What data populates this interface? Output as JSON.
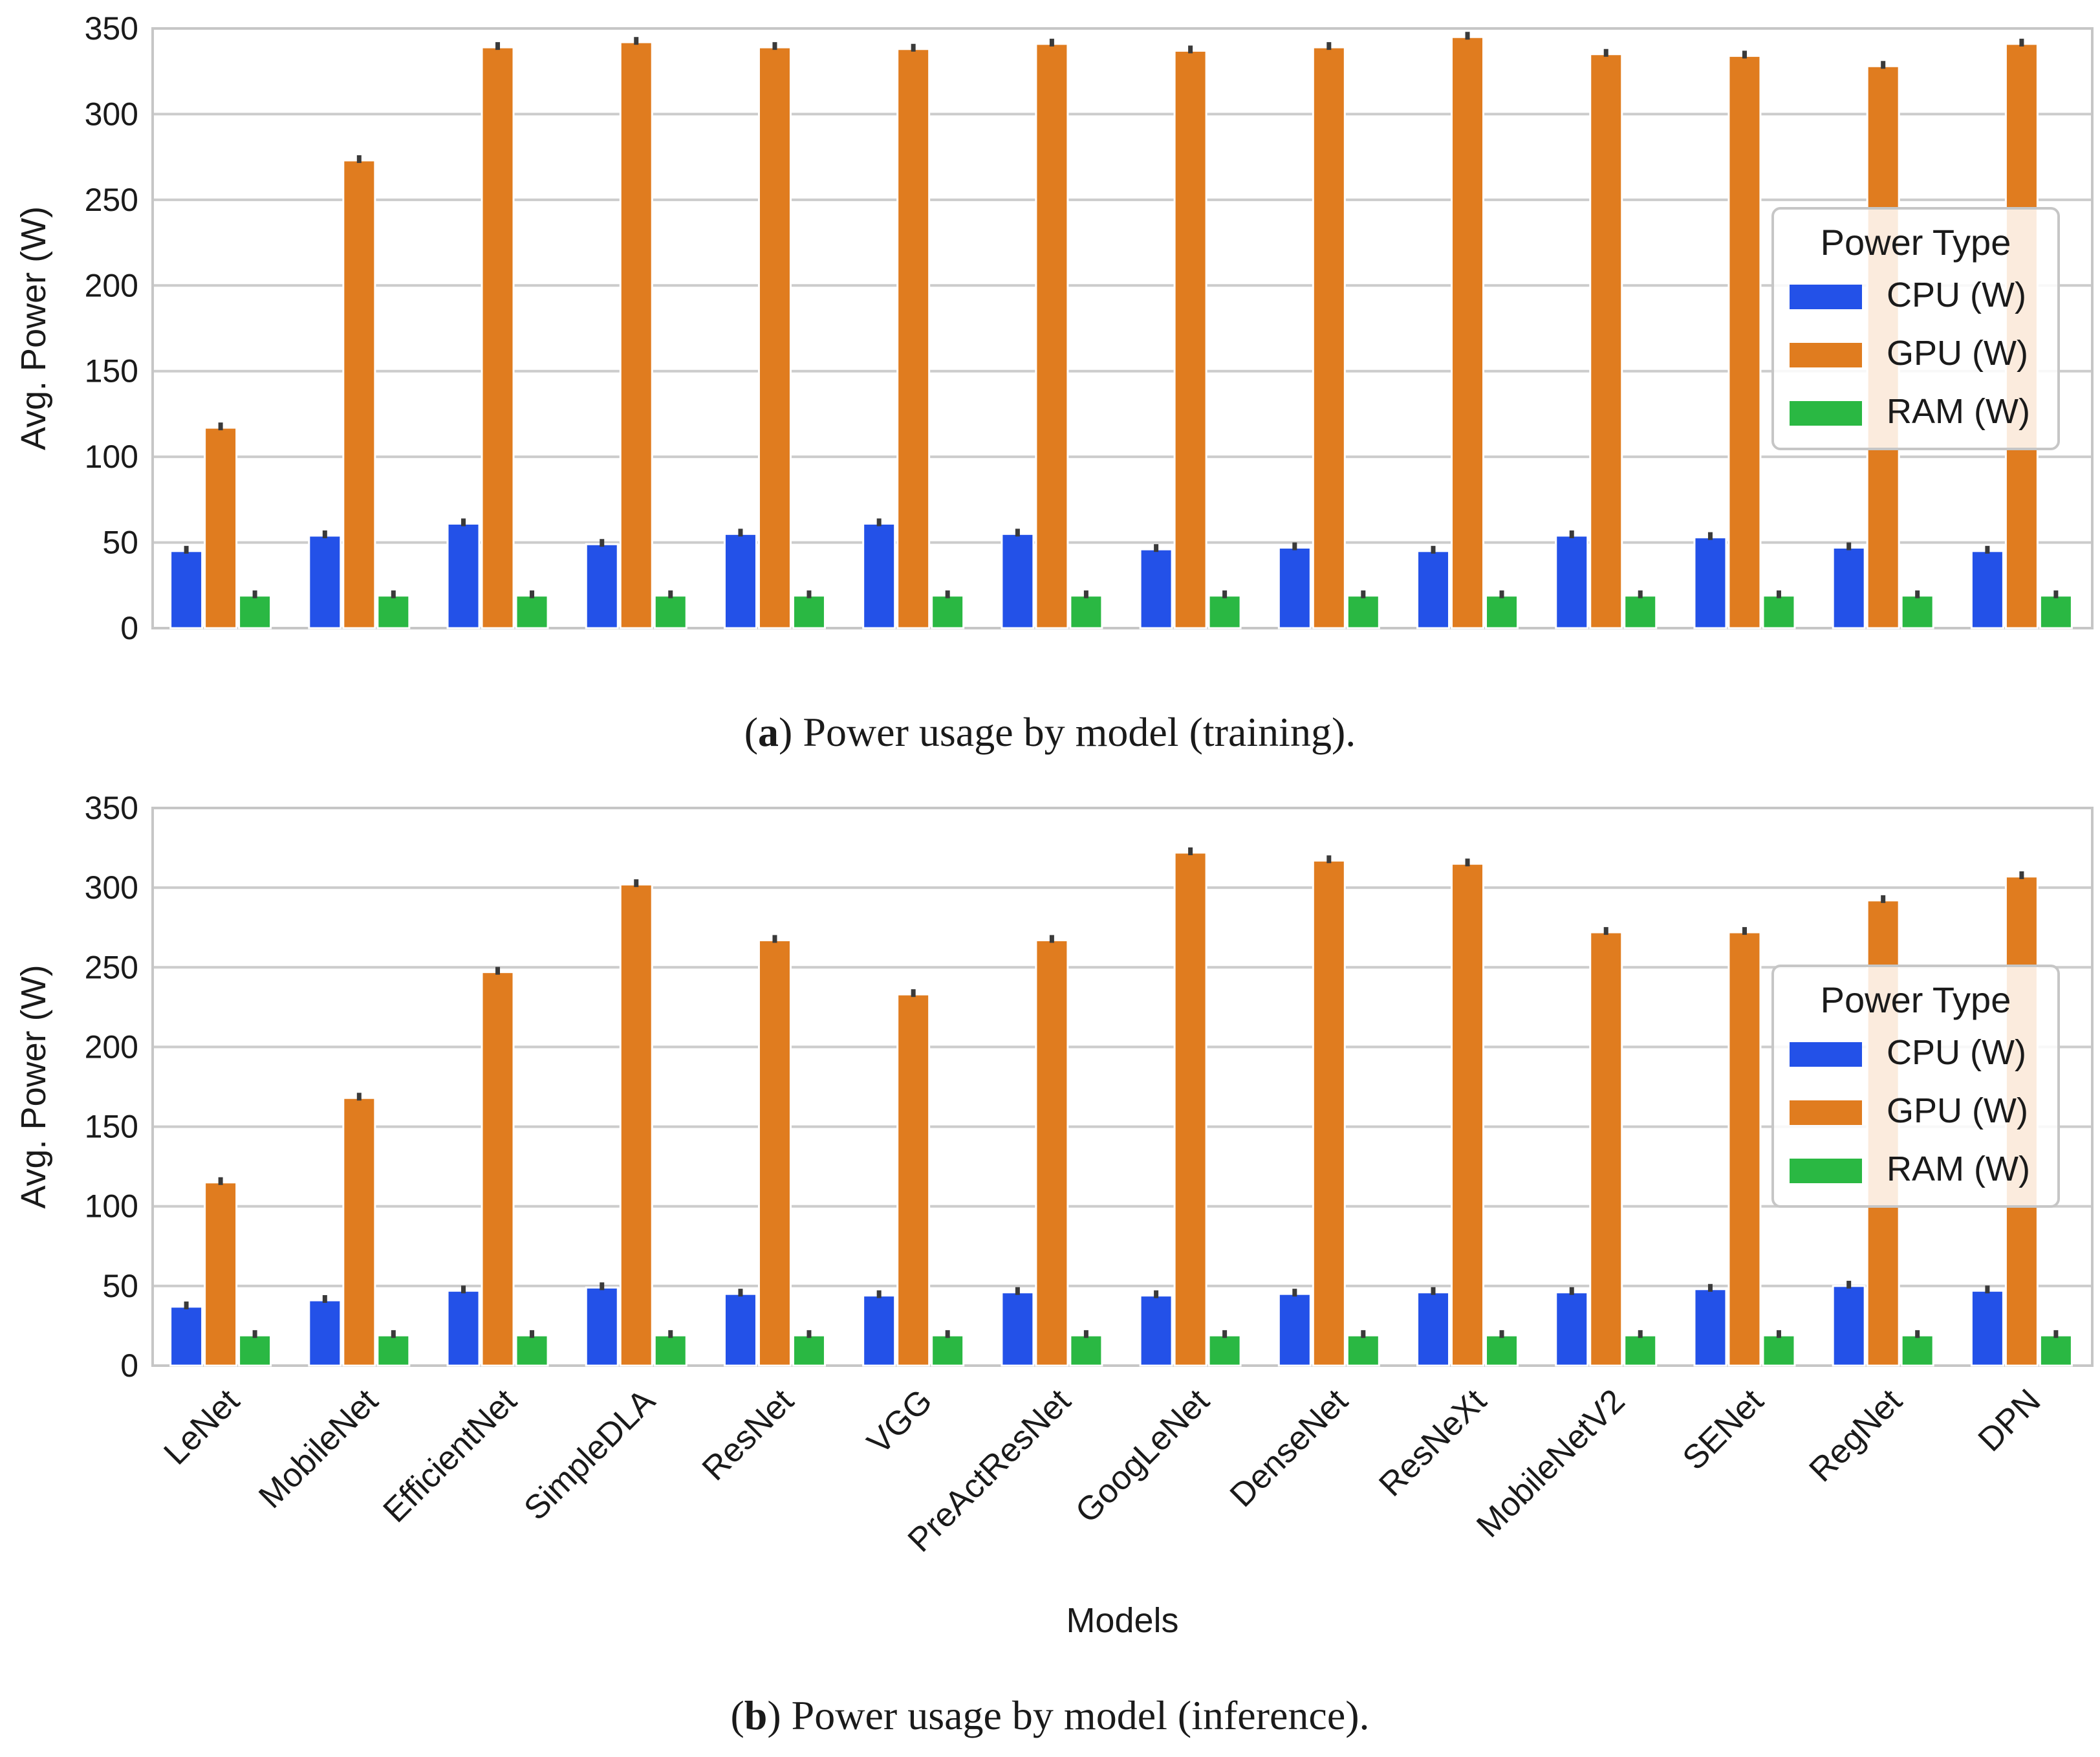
{
  "colors": {
    "cpu": "#2351e8",
    "gpu": "#e07c1f",
    "ram": "#2ab843",
    "grid": "#cccccc",
    "axis": "#c6c6c6",
    "text": "#1a1a1a",
    "errbar": "#3a3a3a"
  },
  "captions": {
    "a": {
      "label": "a",
      "text": ") Power usage by model (training).",
      "open": "("
    },
    "b": {
      "label": "b",
      "text": ") Power usage by model (inference).",
      "open": "("
    }
  },
  "chart_data": [
    {
      "type": "bar",
      "title": "",
      "xlabel": "",
      "ylabel": "Avg. Power (W)",
      "ylim": [
        0,
        350
      ],
      "yticks": [
        0,
        50,
        100,
        150,
        200,
        250,
        300,
        350
      ],
      "grid": true,
      "legend": {
        "title": "Power Type",
        "placement": "right"
      },
      "categories": [
        "LeNet",
        "MobileNet",
        "EfficientNet",
        "SimpleDLA",
        "ResNet",
        "VGG",
        "PreActResNet",
        "GoogLeNet",
        "DenseNet",
        "ResNeXt",
        "MobileNetV2",
        "SENet",
        "RegNet",
        "DPN"
      ],
      "series": [
        {
          "name": "CPU (W)",
          "key": "cpu",
          "values": [
            45,
            54,
            61,
            49,
            55,
            61,
            55,
            46,
            47,
            45,
            54,
            53,
            47,
            45
          ]
        },
        {
          "name": "GPU (W)",
          "key": "gpu",
          "values": [
            117,
            273,
            339,
            342,
            339,
            338,
            341,
            337,
            339,
            345,
            335,
            334,
            328,
            341
          ]
        },
        {
          "name": "RAM (W)",
          "key": "ram",
          "values": [
            19,
            19,
            19,
            19,
            19,
            19,
            19,
            19,
            19,
            19,
            19,
            19,
            19,
            19
          ]
        }
      ],
      "show_xticklabels": false
    },
    {
      "type": "bar",
      "title": "",
      "xlabel": "Models",
      "ylabel": "Avg. Power (W)",
      "ylim": [
        0,
        350
      ],
      "yticks": [
        0,
        50,
        100,
        150,
        200,
        250,
        300,
        350
      ],
      "grid": true,
      "legend": {
        "title": "Power Type",
        "placement": "right"
      },
      "categories": [
        "LeNet",
        "MobileNet",
        "EfficientNet",
        "SimpleDLA",
        "ResNet",
        "VGG",
        "PreActResNet",
        "GoogLeNet",
        "DenseNet",
        "ResNeXt",
        "MobileNetV2",
        "SENet",
        "RegNet",
        "DPN"
      ],
      "series": [
        {
          "name": "CPU (W)",
          "key": "cpu",
          "values": [
            37,
            41,
            47,
            49,
            45,
            44,
            46,
            44,
            45,
            46,
            46,
            48,
            50,
            47
          ]
        },
        {
          "name": "GPU (W)",
          "key": "gpu",
          "values": [
            115,
            168,
            247,
            302,
            267,
            233,
            267,
            322,
            317,
            315,
            272,
            272,
            292,
            307
          ]
        },
        {
          "name": "RAM (W)",
          "key": "ram",
          "values": [
            19,
            19,
            19,
            19,
            19,
            19,
            19,
            19,
            19,
            19,
            19,
            19,
            19,
            19
          ]
        }
      ],
      "show_xticklabels": true
    }
  ]
}
